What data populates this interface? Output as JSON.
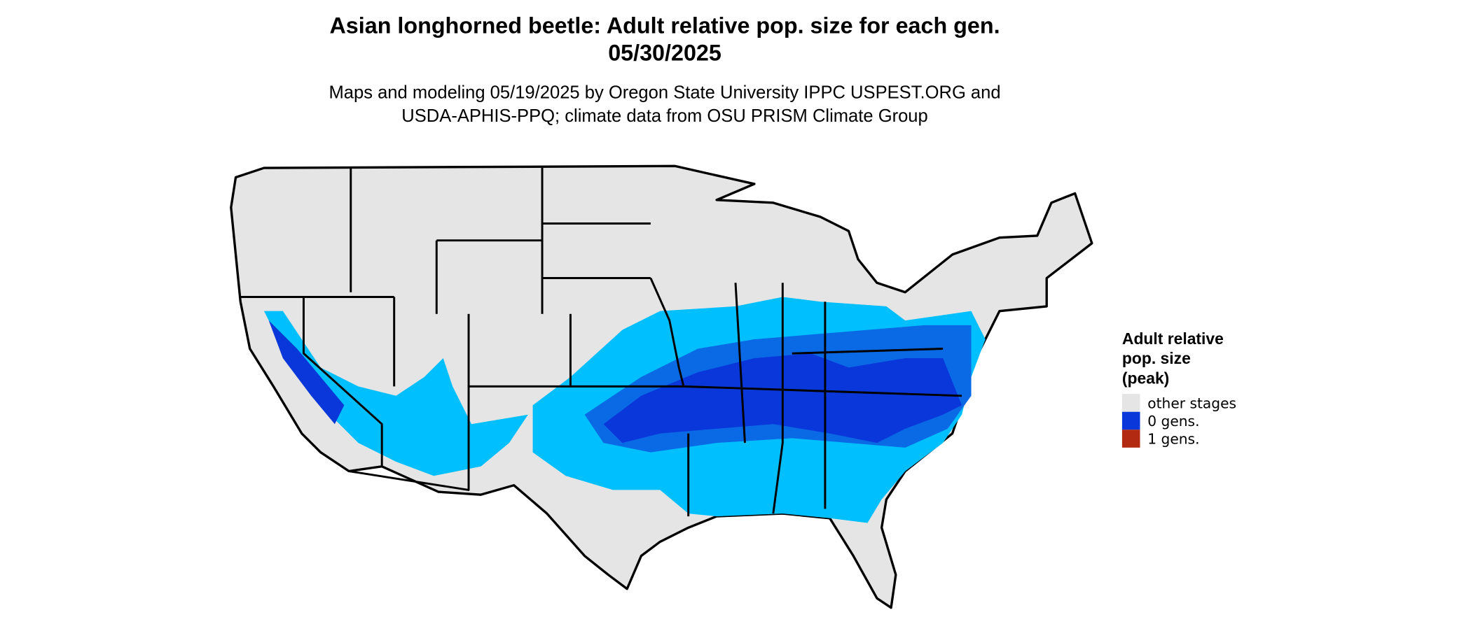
{
  "title": "Asian longhorned beetle: Adult relative pop. size for each gen.",
  "date": "05/30/2025",
  "subtitle": [
    "Maps and modeling 05/19/2025 by Oregon State University IPPC USPEST.ORG and",
    "USDA-APHIS-PPQ; climate data from OSU PRISM Climate Group"
  ],
  "legend": {
    "title": [
      "Adult relative",
      "pop. size",
      "(peak)"
    ],
    "items": [
      {
        "label": "other stages",
        "color": "#e5e5e5"
      },
      {
        "label": "0 gens.",
        "color": "#0a37d9"
      },
      {
        "label": "1 gens.",
        "color": "#b22a12"
      }
    ]
  }
}
